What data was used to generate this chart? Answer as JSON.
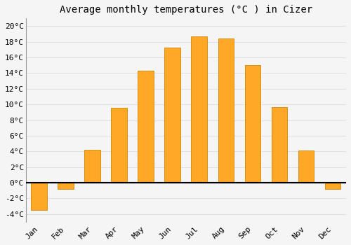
{
  "months": [
    "Jan",
    "Feb",
    "Mar",
    "Apr",
    "May",
    "Jun",
    "Jul",
    "Aug",
    "Sep",
    "Oct",
    "Nov",
    "Dec"
  ],
  "values": [
    -3.5,
    -0.8,
    4.2,
    9.6,
    14.3,
    17.3,
    18.7,
    18.4,
    15.0,
    9.7,
    4.1,
    -0.8
  ],
  "bar_color": "#FFA726",
  "bar_edge_color": "#CC8800",
  "title": "Average monthly temperatures (°C ) in Cizer",
  "title_fontsize": 10,
  "ylim": [
    -5,
    21
  ],
  "yticks": [
    -4,
    -2,
    0,
    2,
    4,
    6,
    8,
    10,
    12,
    14,
    16,
    18,
    20
  ],
  "background_color": "#f5f5f5",
  "plot_bg_color": "#f5f5f5",
  "grid_color": "#e0e0e0",
  "zero_line_color": "#000000",
  "bar_width": 0.6
}
